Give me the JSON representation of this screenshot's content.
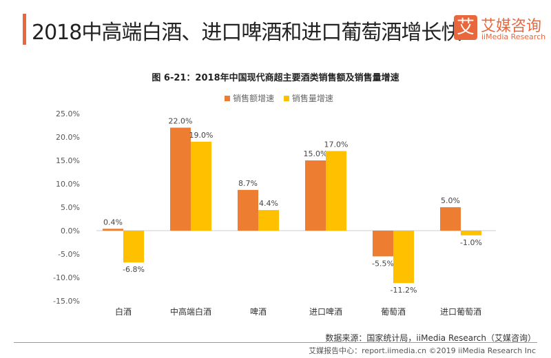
{
  "header": {
    "title": "2018中高端白酒、进口啤酒和进口葡萄酒增长快",
    "logo_mark": "艾",
    "logo_cn": "艾媒咨询",
    "logo_en": "iiMedia Research"
  },
  "chart_data": {
    "type": "bar",
    "title": "图 6-21：2018年中国现代商超主要酒类销售额及销售量增速",
    "categories": [
      "白酒",
      "中高端白酒",
      "啤酒",
      "进口啤酒",
      "葡萄酒",
      "进口葡萄酒"
    ],
    "series": [
      {
        "name": "销售额增速",
        "color": "#ED7D31",
        "values": [
          0.4,
          22.0,
          8.7,
          15.0,
          -5.5,
          5.0
        ]
      },
      {
        "name": "销售量增速",
        "color": "#FFC000",
        "values": [
          -6.8,
          19.0,
          4.4,
          17.0,
          -11.2,
          -1.0
        ]
      }
    ],
    "ylim": [
      -15,
      25
    ],
    "yticks": [
      "25.0%",
      "20.0%",
      "15.0%",
      "10.0%",
      "5.0%",
      "0.0%",
      "-5.0%",
      "-10.0%",
      "-15.0%"
    ],
    "legend_position": "top-center"
  },
  "source": "数据来源：国家统计局，iiMedia Research（艾媒咨询）",
  "footer": "艾媒报告中心：report.iimedia.cn     ©2019  iiMedia Research  Inc"
}
